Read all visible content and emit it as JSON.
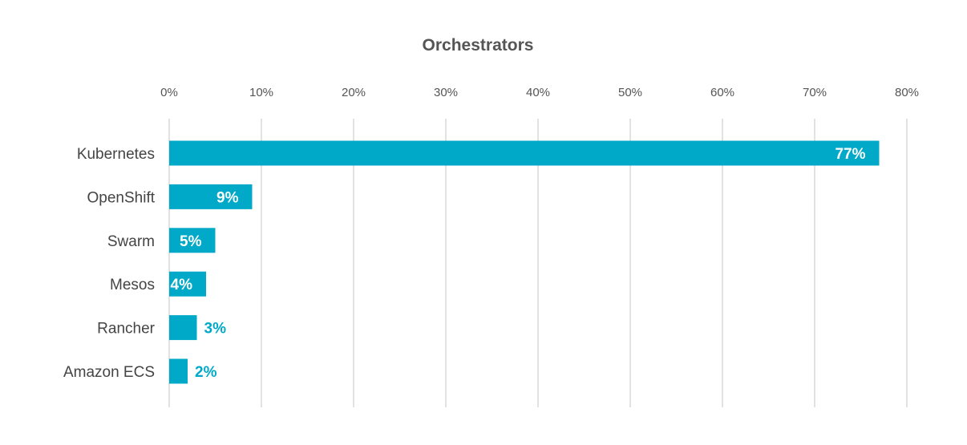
{
  "chart_data": {
    "type": "bar",
    "orientation": "horizontal",
    "title": "Orchestrators",
    "xlabel": "",
    "ylabel": "",
    "categories": [
      "Kubernetes",
      "OpenShift",
      "Swarm",
      "Mesos",
      "Rancher",
      "Amazon ECS"
    ],
    "values": [
      77,
      9,
      5,
      4,
      3,
      2
    ],
    "data_labels": [
      "77%",
      "9%",
      "5%",
      "4%",
      "3%",
      "2%"
    ],
    "xlim": [
      0,
      80
    ],
    "x_ticks": [
      0,
      10,
      20,
      30,
      40,
      50,
      60,
      70,
      80
    ],
    "x_tick_labels": [
      "0%",
      "10%",
      "20%",
      "30%",
      "40%",
      "50%",
      "60%",
      "70%",
      "80%"
    ],
    "x_axis_position": "top",
    "grid": true,
    "legend": "none",
    "colors": {
      "bar": "#00a9c8",
      "label_inside": "#ffffff",
      "label_outside": "#00a9c8",
      "grid": "#d9d9d9",
      "text": "#555555"
    }
  }
}
